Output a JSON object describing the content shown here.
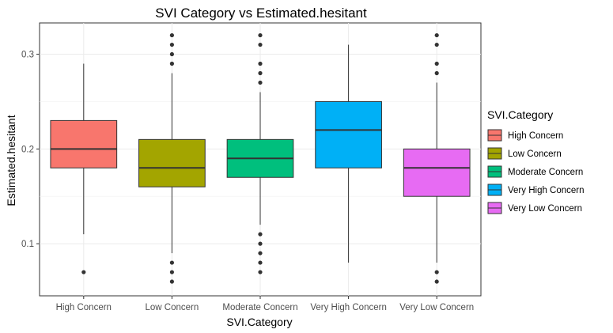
{
  "chart_data": {
    "type": "box",
    "title": "SVI Category vs Estimated.hesitant",
    "xlabel": "SVI.Category",
    "ylabel": "Estimated.hesitant",
    "ylim": [
      0.045,
      0.333
    ],
    "yticks": [
      0.1,
      0.2,
      0.3
    ],
    "ytick_labels": [
      "0.1",
      "0.2",
      "0.3"
    ],
    "grid": true,
    "legend": {
      "title": "SVI.Category",
      "position": "right"
    },
    "categories": [
      "High Concern",
      "Low Concern",
      "Moderate Concern",
      "Very High Concern",
      "Very Low Concern"
    ],
    "series": [
      {
        "name": "High Concern",
        "color": "#F8766D",
        "min": 0.11,
        "q1": 0.18,
        "median": 0.2,
        "q3": 0.23,
        "max": 0.29,
        "outliers": [
          0.07
        ]
      },
      {
        "name": "Low Concern",
        "color": "#A3A500",
        "min": 0.09,
        "q1": 0.16,
        "median": 0.18,
        "q3": 0.21,
        "max": 0.28,
        "outliers": [
          0.06,
          0.07,
          0.08,
          0.29,
          0.3,
          0.31,
          0.32
        ]
      },
      {
        "name": "Moderate Concern",
        "color": "#00BF7D",
        "min": 0.12,
        "q1": 0.17,
        "median": 0.19,
        "q3": 0.21,
        "max": 0.26,
        "outliers": [
          0.07,
          0.08,
          0.09,
          0.1,
          0.11,
          0.27,
          0.28,
          0.29,
          0.31,
          0.32
        ]
      },
      {
        "name": "Very High Concern",
        "color": "#00B0F6",
        "min": 0.08,
        "q1": 0.18,
        "median": 0.22,
        "q3": 0.25,
        "max": 0.31,
        "outliers": []
      },
      {
        "name": "Very Low Concern",
        "color": "#E76BF3",
        "min": 0.08,
        "q1": 0.15,
        "median": 0.18,
        "q3": 0.2,
        "max": 0.27,
        "outliers": [
          0.06,
          0.07,
          0.28,
          0.29,
          0.31,
          0.32
        ]
      }
    ]
  }
}
